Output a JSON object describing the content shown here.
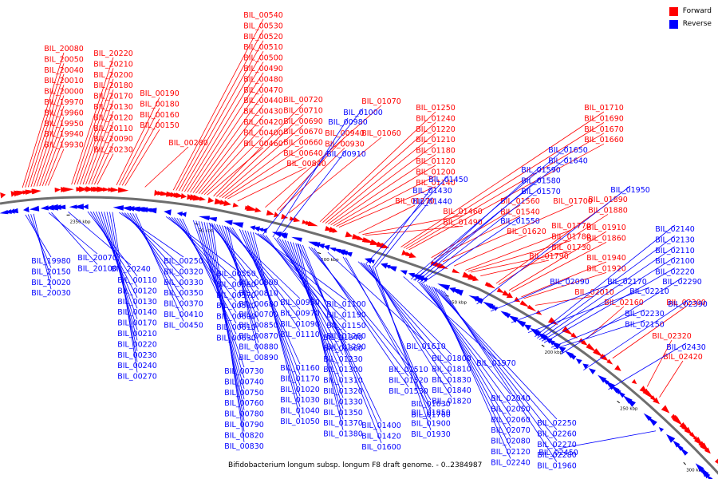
{
  "caption": "Bifidobacterium longum subsp. longum F8 draft genome. - 0..2384987",
  "legend": {
    "forward_label": "Forward",
    "reverse_label": "Reverse",
    "forward_color": "#ff0000",
    "reverse_color": "#0000ff"
  },
  "ticks": [
    "2350 kbp",
    "50 kbp",
    "100 kbp",
    "150 kbp",
    "200 kbp",
    "250 kbp",
    "300 kbp"
  ],
  "labels": {
    "forward": [
      "BIL_20080",
      "BIL_20050",
      "BIL_20040",
      "BIL_20010",
      "BIL_20000",
      "BIL_19970",
      "BIL_19960",
      "BIL_19950",
      "BIL_19940",
      "BIL_19930",
      "BIL_20220",
      "BIL_20210",
      "BIL_20200",
      "BIL_20180",
      "BIL_20170",
      "BIL_20130",
      "BIL_20120",
      "BIL_20110",
      "BIL_20090",
      "BIL_20230",
      "BIL_00190",
      "BIL_00180",
      "BIL_00160",
      "BIL_00150",
      "BIL_00280",
      "BIL_00540",
      "BIL_00530",
      "BIL_00520",
      "BIL_00510",
      "BIL_00500",
      "BIL_00490",
      "BIL_00480",
      "BIL_00470",
      "BIL_00440",
      "BIL_00430",
      "BIL_00420",
      "BIL_00400",
      "BIL_00460",
      "BIL_00720",
      "BIL_00710",
      "BIL_00690",
      "BIL_00670",
      "BIL_00660",
      "BIL_00640",
      "BIL_00840",
      "BIL_01070",
      "BIL_00940",
      "BIL_00930",
      "BIL_01060",
      "BIL_01250",
      "BIL_01240",
      "BIL_01220",
      "BIL_01210",
      "BIL_01180",
      "BIL_01120",
      "BIL_01200",
      "BIL_01140",
      "BIL_01270",
      "BIL_01710",
      "BIL_01690",
      "BIL_01670",
      "BIL_01660",
      "BIL_01560",
      "BIL_01540",
      "BIL_01700",
      "BIL_01620",
      "BIL_01770",
      "BIL_01780",
      "BIL_01730",
      "BIL_01790",
      "BIL_01890",
      "BIL_01880",
      "BIL_01910",
      "BIL_01860",
      "BIL_01940",
      "BIL_01920",
      "BIL_02010",
      "BIL_01460",
      "BIL_01490",
      "BIL_02160",
      "BIL_02300",
      "BIL_02320",
      "BIL_02420"
    ],
    "reverse": [
      "BIL_01000",
      "BIL_00980",
      "BIL_00910",
      "BIL_01450",
      "BIL_01430",
      "BIL_01440",
      "BIL_01650",
      "BIL_01640",
      "BIL_01590",
      "BIL_01580",
      "BIL_01570",
      "BIL_01550",
      "BIL_01950",
      "BIL_19980",
      "BIL_20150",
      "BIL_20020",
      "BIL_20030",
      "BIL_20070",
      "BIL_20100",
      "BIL_20240",
      "BIL_00110",
      "BIL_00120",
      "BIL_00130",
      "BIL_00140",
      "BIL_00170",
      "BIL_00210",
      "BIL_00220",
      "BIL_00230",
      "BIL_00240",
      "BIL_00270",
      "BIL_00250",
      "BIL_00320",
      "BIL_00330",
      "BIL_00350",
      "BIL_00370",
      "BIL_00410",
      "BIL_00450",
      "BIL_00550",
      "BIL_00560",
      "BIL_00570",
      "BIL_00580",
      "BIL_00600",
      "BIL_00610",
      "BIL_00630",
      "BIL_00730",
      "BIL_00740",
      "BIL_00750",
      "BIL_00760",
      "BIL_00780",
      "BIL_00790",
      "BIL_00820",
      "BIL_00830",
      "BIL_00800",
      "BIL_00810",
      "BIL_00680",
      "BIL_00700",
      "BIL_00850",
      "BIL_00870",
      "BIL_00880",
      "BIL_00890",
      "BIL_00950",
      "BIL_00970",
      "BIL_01090",
      "BIL_01110",
      "BIL_01160",
      "BIL_01170",
      "BIL_01020",
      "BIL_01030",
      "BIL_01040",
      "BIL_01050",
      "BIL_01100",
      "BIL_01190",
      "BIL_01150",
      "BIL_01260",
      "BIL_01290",
      "BIL_01340",
      "BIL_01360",
      "BIL_01230",
      "BIL_01300",
      "BIL_01310",
      "BIL_01320",
      "BIL_01330",
      "BIL_01350",
      "BIL_01370",
      "BIL_01380",
      "BIL_01400",
      "BIL_01420",
      "BIL_01600",
      "BIL_01510",
      "BIL_01520",
      "BIL_01530",
      "BIL_01610",
      "BIL_01630",
      "BIL_01760",
      "BIL_01800",
      "BIL_01810",
      "BIL_01830",
      "BIL_01840",
      "BIL_01820",
      "BIL_01850",
      "BIL_01900",
      "BIL_01930",
      "BIL_01970",
      "BIL_02040",
      "BIL_02050",
      "BIL_02060",
      "BIL_02070",
      "BIL_02080",
      "BIL_02120",
      "BIL_02240",
      "BIL_02250",
      "BIL_02260",
      "BIL_02270",
      "BIL_02280",
      "BIL_01960",
      "BIL_02090",
      "BIL_02170",
      "BIL_02210",
      "BIL_02230",
      "BIL_02150",
      "BIL_02140",
      "BIL_02130",
      "BIL_02110",
      "BIL_02100",
      "BIL_02220",
      "BIL_02290",
      "BIL_02390",
      "BIL_02430",
      "BIL_02450"
    ]
  }
}
